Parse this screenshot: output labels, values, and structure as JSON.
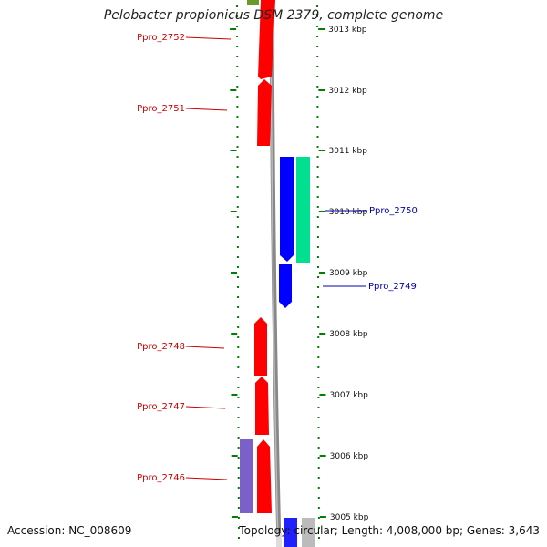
{
  "header": {
    "title": "Pelobacter propionicus DSM 2379, complete genome"
  },
  "footer": {
    "accession": "Accession: NC_008609",
    "summary": "Topology: circular; Length: 4,008,000 bp; Genes: 3,643"
  },
  "colors": {
    "forward_cds": "#ff0000",
    "reverse_cds": "#0000ff",
    "rna_feature": "#00e090",
    "other_feature": "#7a60c8",
    "edge_feature": "#6a9a2a",
    "backbone": "#888888",
    "tick": "#008000",
    "forward_label": "#cc0000",
    "reverse_label": "#0000aa"
  },
  "ruler": {
    "ticks": [
      {
        "label": "3013 kbp"
      },
      {
        "label": "3012 kbp"
      },
      {
        "label": "3011 kbp"
      },
      {
        "label": "3010 kbp"
      },
      {
        "label": "3009 kbp"
      },
      {
        "label": "3008 kbp"
      },
      {
        "label": "3007 kbp"
      },
      {
        "label": "3006 kbp"
      },
      {
        "label": "3005 kbp"
      }
    ]
  },
  "genes": {
    "forward": [
      {
        "label": "Ppro_2752"
      },
      {
        "label": "Ppro_2751"
      },
      {
        "label": "Ppro_2748"
      },
      {
        "label": "Ppro_2747"
      },
      {
        "label": "Ppro_2746"
      }
    ],
    "reverse": [
      {
        "label": "Ppro_2750"
      },
      {
        "label": "Ppro_2749"
      }
    ]
  }
}
